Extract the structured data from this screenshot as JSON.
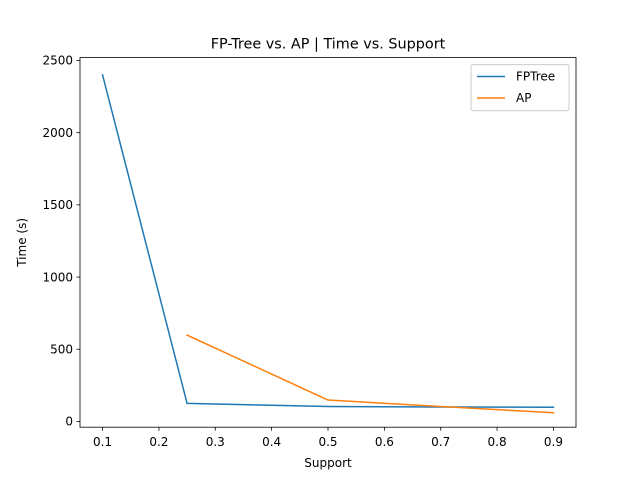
{
  "chart_data": {
    "type": "line",
    "title": "FP-Tree vs. AP | Time vs. Support",
    "xlabel": "Support",
    "ylabel": "Time (s)",
    "xlim": [
      0.06,
      0.94
    ],
    "ylim": [
      -40,
      2520
    ],
    "xticks": [
      0.1,
      0.2,
      0.3,
      0.4,
      0.5,
      0.6,
      0.7,
      0.8,
      0.9
    ],
    "xtick_labels": [
      "0.1",
      "0.2",
      "0.3",
      "0.4",
      "0.5",
      "0.6",
      "0.7",
      "0.8",
      "0.9"
    ],
    "yticks": [
      0,
      500,
      1000,
      1500,
      2000,
      2500
    ],
    "ytick_labels": [
      "0",
      "500",
      "1000",
      "1500",
      "2000",
      "2500"
    ],
    "grid": false,
    "legend_position": "top-right",
    "series": [
      {
        "name": "FPTree",
        "color": "#1f77b4",
        "x": [
          0.1,
          0.25,
          0.5,
          0.7,
          0.9
        ],
        "y": [
          2400,
          125,
          103,
          100,
          98
        ]
      },
      {
        "name": "AP",
        "color": "#ff7f0e",
        "x": [
          0.25,
          0.5,
          0.7,
          0.9
        ],
        "y": [
          598,
          148,
          103,
          60
        ]
      }
    ]
  }
}
